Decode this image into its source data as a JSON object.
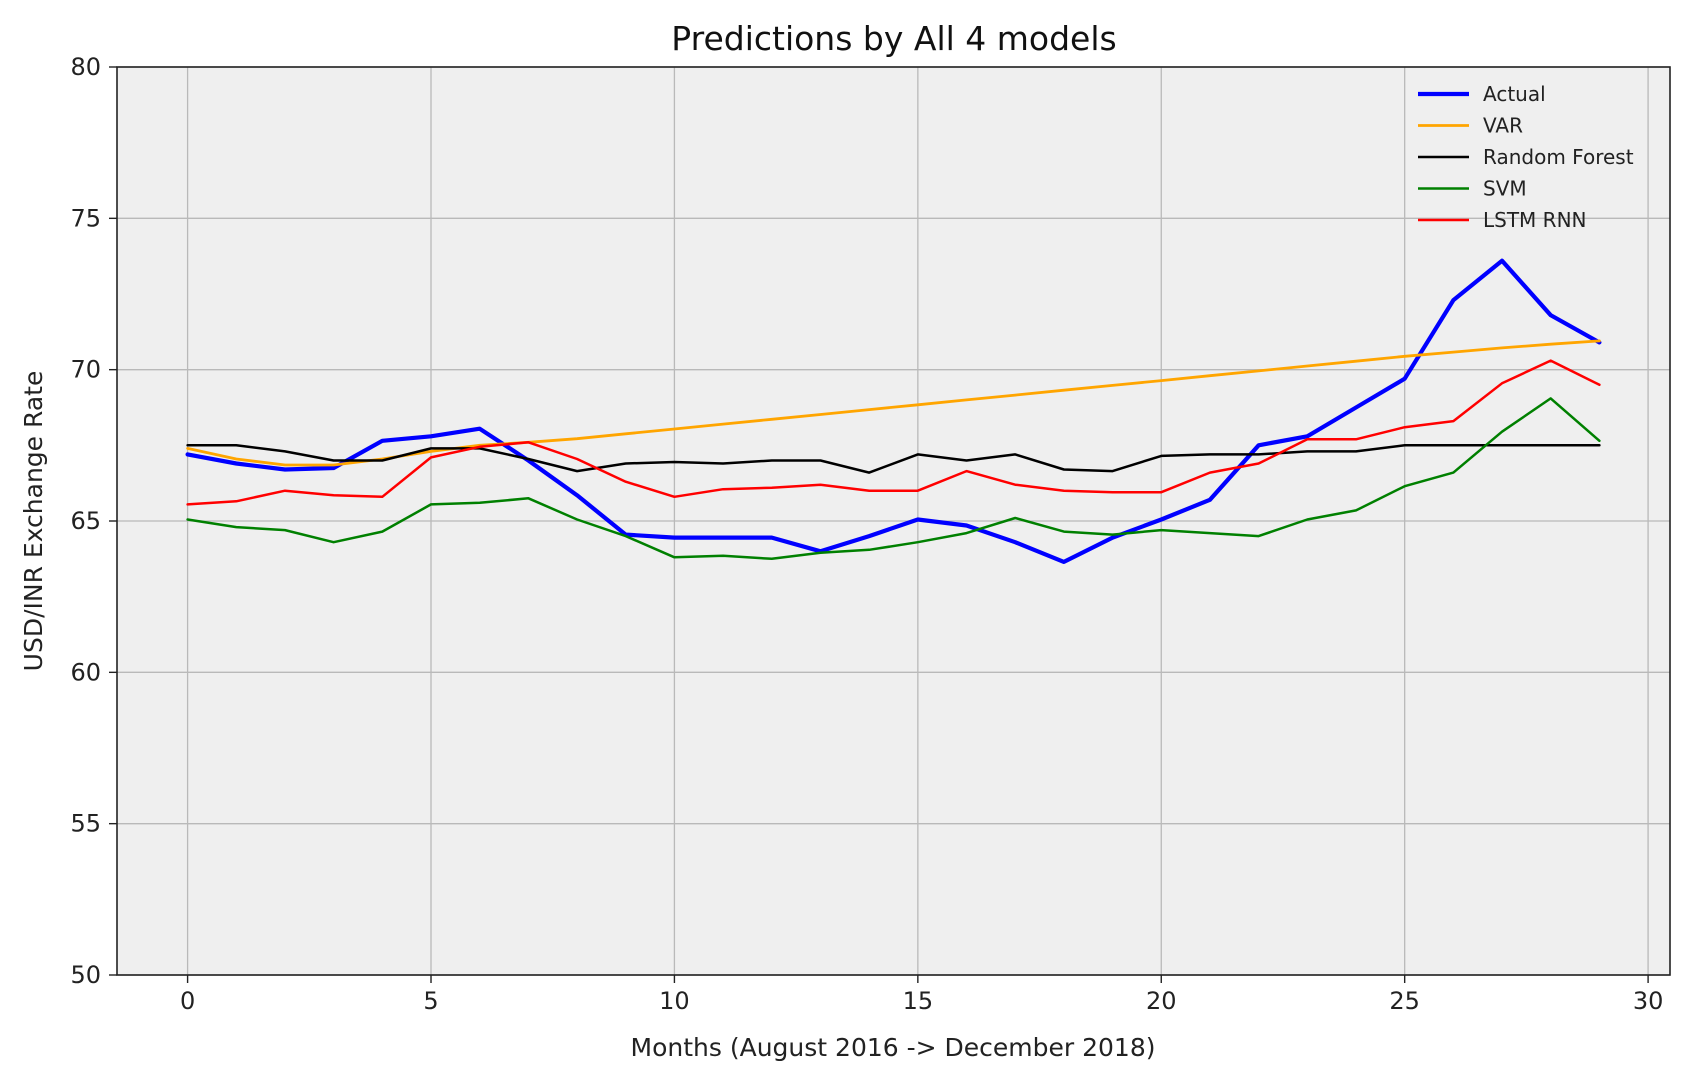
{
  "chart_data": {
    "type": "line",
    "title": "Predictions by All 4 models",
    "xlabel": "Months (August 2016 -> December 2018)",
    "ylabel": "USD/INR Exchange Rate",
    "xlim": [
      -1.45,
      30.45
    ],
    "ylim": [
      50,
      80
    ],
    "xticks": [
      0,
      5,
      10,
      15,
      20,
      25,
      30
    ],
    "yticks": [
      50,
      55,
      60,
      65,
      70,
      75,
      80
    ],
    "grid": true,
    "legend_position": "top-right",
    "background": "#efefef",
    "x": [
      0,
      1,
      2,
      3,
      4,
      5,
      6,
      7,
      8,
      9,
      10,
      11,
      12,
      13,
      14,
      15,
      16,
      17,
      18,
      19,
      20,
      21,
      22,
      23,
      24,
      25,
      26,
      27,
      28,
      29
    ],
    "series": [
      {
        "name": "Actual",
        "color": "#0000ff",
        "width": 4.2,
        "values": [
          67.2,
          66.9,
          66.7,
          66.75,
          67.65,
          67.8,
          68.05,
          67.0,
          65.85,
          64.55,
          64.45,
          64.45,
          64.45,
          64.0,
          64.5,
          65.05,
          64.85,
          64.3,
          63.65,
          64.45,
          65.05,
          65.7,
          67.5,
          67.8,
          68.75,
          69.7,
          72.3,
          73.6,
          71.8,
          70.9
        ]
      },
      {
        "name": "VAR",
        "color": "#ffa500",
        "width": 2.8,
        "values": [
          67.4,
          67.05,
          66.85,
          66.85,
          67.05,
          67.3,
          67.5,
          67.6,
          67.72,
          67.88,
          68.04,
          68.2,
          68.36,
          68.52,
          68.68,
          68.84,
          69.0,
          69.16,
          69.32,
          69.48,
          69.64,
          69.8,
          69.96,
          70.12,
          70.28,
          70.44,
          70.58,
          70.72,
          70.84,
          70.95
        ]
      },
      {
        "name": "Random Forest",
        "color": "#000000",
        "width": 2.5,
        "values": [
          67.5,
          67.5,
          67.3,
          67.0,
          67.0,
          67.4,
          67.4,
          67.05,
          66.65,
          66.9,
          66.95,
          66.9,
          67.0,
          67.0,
          66.6,
          67.2,
          67.0,
          67.2,
          66.7,
          66.65,
          67.15,
          67.2,
          67.2,
          67.3,
          67.3,
          67.5,
          67.5,
          67.5,
          67.5,
          67.5
        ]
      },
      {
        "name": "SVM",
        "color": "#008000",
        "width": 2.5,
        "values": [
          65.05,
          64.8,
          64.7,
          64.3,
          64.65,
          65.55,
          65.6,
          65.75,
          65.05,
          64.5,
          63.8,
          63.85,
          63.75,
          63.95,
          64.05,
          64.3,
          64.6,
          65.1,
          64.65,
          64.55,
          64.7,
          64.6,
          64.5,
          65.05,
          65.35,
          66.15,
          66.6,
          67.95,
          69.05,
          67.65
        ]
      },
      {
        "name": "LSTM RNN",
        "color": "#ff0000",
        "width": 2.5,
        "values": [
          65.55,
          65.65,
          66.0,
          65.85,
          65.8,
          67.1,
          67.45,
          67.6,
          67.05,
          66.3,
          65.8,
          66.05,
          66.1,
          66.2,
          66.0,
          66.0,
          66.65,
          66.2,
          66.0,
          65.95,
          65.95,
          66.6,
          66.9,
          67.7,
          67.7,
          68.1,
          68.3,
          69.55,
          70.3,
          69.5
        ]
      }
    ]
  }
}
